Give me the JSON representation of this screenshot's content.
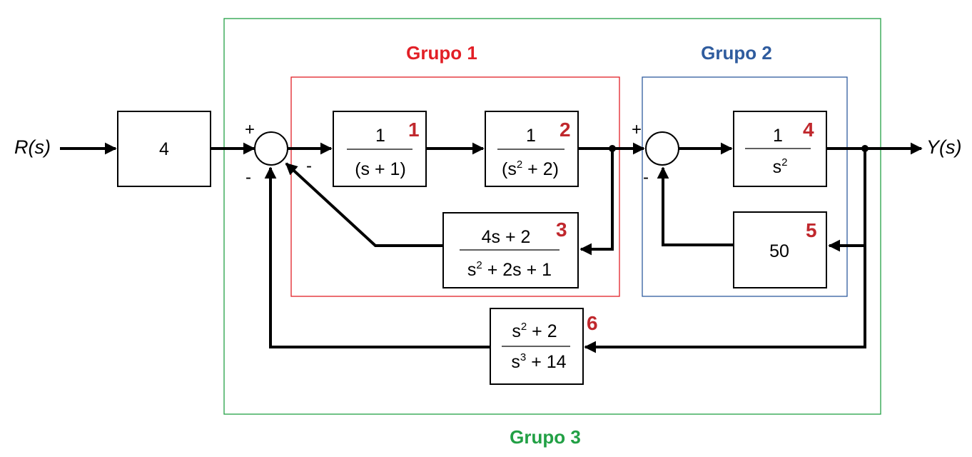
{
  "signals": {
    "input": "R(s)",
    "output": "Y(s)"
  },
  "groups": [
    {
      "label": "Grupo 1",
      "color": "#e21f26"
    },
    {
      "label": "Grupo 2",
      "color": "#2f5c9e"
    },
    {
      "label": "Grupo 3",
      "color": "#22a045"
    }
  ],
  "blocks": {
    "gain": {
      "value": "4"
    },
    "b1": {
      "number": "1",
      "num": "1",
      "den": "(s + 1)"
    },
    "b2": {
      "number": "2",
      "num": "1",
      "den_pre": "(s",
      "den_sup": "2",
      "den_post": " + 2)"
    },
    "b3": {
      "number": "3",
      "num": "4s + 2",
      "den_pre": "s",
      "den_sup": "2",
      "den_post": " + 2s + 1"
    },
    "b4": {
      "number": "4",
      "num": "1",
      "den_pre": "s",
      "den_sup": "2",
      "den_post": ""
    },
    "b5": {
      "number": "5",
      "value": "50"
    },
    "b6": {
      "number": "6",
      "num_pre": "s",
      "num_sup": "2",
      "num_post": " + 2",
      "den_pre": "s",
      "den_sup": "3",
      "den_post": " + 14"
    }
  },
  "signs": {
    "s1_plus": "+",
    "s1_minus_bottom": "-",
    "s1_minus_right": "-",
    "s2_plus": "+",
    "s2_minus": "-"
  },
  "colors": {
    "block_number": "#c0282d",
    "wire": "#000000"
  }
}
